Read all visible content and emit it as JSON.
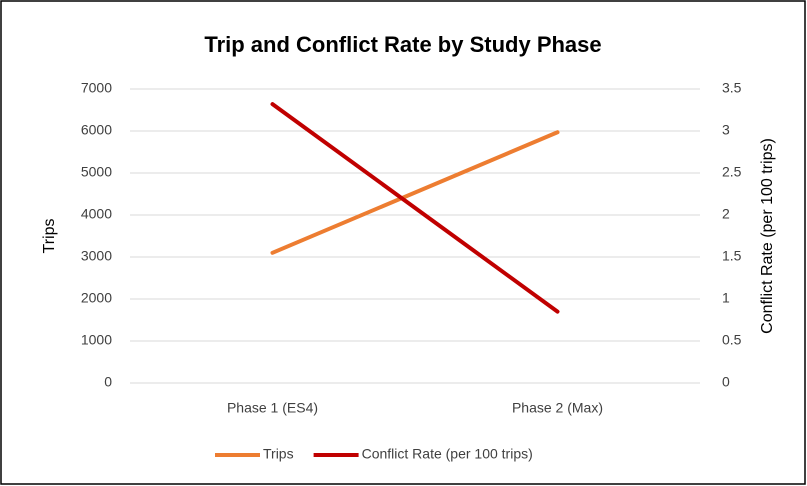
{
  "chart_data": {
    "type": "line",
    "title": "Trip and Conflict Rate by Study Phase",
    "categories": [
      "Phase 1 (ES4)",
      "Phase 2 (Max)"
    ],
    "series": [
      {
        "name": "Trips",
        "color": "#ed7d31",
        "values": [
          3100,
          5970
        ]
      },
      {
        "name": "Conflict Rate (per 100 trips)",
        "color": "#c00000",
        "values": [
          3.32,
          0.85
        ],
        "axis": "y2"
      }
    ],
    "y_label": "Trips",
    "y2_label": "Conflict Rate (per 100 trips)",
    "ylim": [
      0,
      7000
    ],
    "yticks": [
      0,
      1000,
      2000,
      3000,
      4000,
      5000,
      6000,
      7000
    ],
    "y2lim": [
      0,
      3.5
    ],
    "y2ticks": [
      0,
      0.5,
      1,
      1.5,
      2,
      2.5,
      3,
      3.5
    ],
    "grid": true,
    "legend": "bottom"
  }
}
